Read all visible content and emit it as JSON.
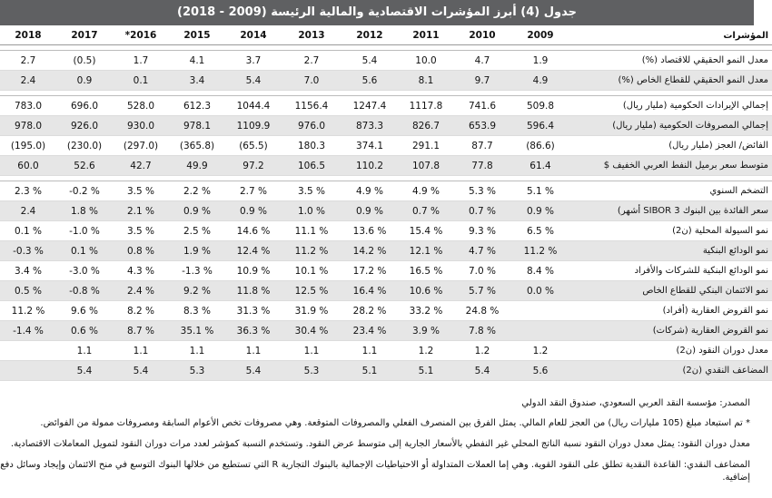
{
  "title": "جدول (4) أبرز المؤشرات الاقتصادية والمالية الرئيسة (2009 - 2018)",
  "header": {
    "indicators_label": "المؤشرات",
    "years": [
      "2009",
      "2010",
      "2011",
      "2012",
      "2013",
      "2014",
      "2015",
      "*2016",
      "2017",
      "2018"
    ]
  },
  "groups": [
    [
      {
        "label": "معدل النمو الحقيقي للاقتصاد  (%)",
        "values": [
          "1.9",
          "4.7",
          "10.0",
          "5.4",
          "2.7",
          "3.7",
          "4.1",
          "1.7",
          "(0.5)",
          "2.7"
        ]
      },
      {
        "label": "معدل النمو الحقيقي للقطاع الخاص (%)",
        "values": [
          "4.9",
          "9.7",
          "8.1",
          "5.6",
          "7.0",
          "5.4",
          "3.4",
          "0.1",
          "0.9",
          "2.4"
        ]
      }
    ],
    [
      {
        "label": "إجمالي الإيرادات الحكومية (مليار ريال)",
        "values": [
          "509.8",
          "741.6",
          "1117.8",
          "1247.4",
          "1156.4",
          "1044.4",
          "612.3",
          "528.0",
          "696.0",
          "783.0"
        ]
      },
      {
        "label": "إجمالي المصروفات الحكومية (مليار ريال)",
        "values": [
          "596.4",
          "653.9",
          "826.7",
          "873.3",
          "976.0",
          "1109.9",
          "978.1",
          "930.0",
          "926.0",
          "978.0"
        ]
      },
      {
        "label": "الفائض/ العجز (مليار ريال)",
        "values": [
          "(86.6)",
          "87.7",
          "291.1",
          "374.1",
          "180.3",
          "(65.5)",
          "(365.8)",
          "(297.0)",
          "(230.0)",
          "(195.0)"
        ]
      },
      {
        "label": "متوسط سعر برميل النفط العربي الخفيف $",
        "values": [
          "61.4",
          "77.8",
          "107.8",
          "110.2",
          "106.5",
          "97.2",
          "49.9",
          "42.7",
          "52.6",
          "60.0"
        ]
      }
    ],
    [
      {
        "label": "التضخم السنوي",
        "values": [
          "5.1 %",
          "5.3 %",
          "4.9 %",
          "4.9 %",
          "3.5 %",
          "2.7 %",
          "2.2 %",
          "3.5 %",
          "-0.2 %",
          "2.3 %"
        ]
      },
      {
        "label": "سعر الفائدة بين البنوك 3 SIBOR أشهر)",
        "values": [
          "0.9 %",
          "0.7 %",
          "0.7 %",
          "0.9 %",
          "1.0 %",
          "0.9 %",
          "0.9 %",
          "2.1 %",
          "1.8 %",
          "2.4"
        ]
      },
      {
        "label": "نمو السيولة المحلية (ن2)",
        "values": [
          "6.5 %",
          "9.3 %",
          "15.4 %",
          "13.6 %",
          "11.1 %",
          "14.6 %",
          "2.5 %",
          "3.5 %",
          "-1.0 %",
          "0.1 %"
        ]
      },
      {
        "label": "نمو الودائع البنكية",
        "values": [
          "11.2 %",
          "4.7 %",
          "12.1 %",
          "14.2 %",
          "11.2 %",
          "12.4 %",
          "1.9 %",
          "0.8 %",
          "0.1 %",
          "-0.3 %"
        ]
      },
      {
        "label": "نمو الودائع البنكية للشركات والأفراد",
        "values": [
          "8.4 %",
          "7.0 %",
          "16.5 %",
          "17.2 %",
          "10.1 %",
          "10.9 %",
          "-1.3 %",
          "4.3 %",
          "-3.0 %",
          "3.4 %"
        ]
      },
      {
        "label": "نمو الائتمان البنكي للقطاع الخاص",
        "values": [
          "0.0 %",
          "5.7 %",
          "10.6 %",
          "16.4 %",
          "12.5 %",
          "11.8 %",
          "9.2 %",
          "2.4 %",
          "-0.8 %",
          "0.5 %"
        ]
      },
      {
        "label": "نمو القروض العقارية (أفراد)",
        "values": [
          "",
          "24.8 %",
          "33.2 %",
          "28.2 %",
          "31.9 %",
          "31.3 %",
          "8.3 %",
          "8.2 %",
          "9.6 %",
          "11.2 %"
        ]
      },
      {
        "label": "نمو القروض العقارية (شركات)",
        "values": [
          "",
          "7.8 %",
          "3.9 %",
          "23.4 %",
          "30.4 %",
          "36.3 %",
          "35.1 %",
          "8.7 %",
          "0.6 %",
          "-1.4 %"
        ]
      },
      {
        "label": "معدل دوران النقود (ن2)",
        "values": [
          "1.2",
          "1.2",
          "1.2",
          "1.1",
          "1.1",
          "1.1",
          "1.1",
          "1.1",
          "1.1",
          ""
        ]
      },
      {
        "label": "المضاعف النقدي (ن2)",
        "values": [
          "5.6",
          "5.4",
          "5.1",
          "5.1",
          "5.3",
          "5.4",
          "5.3",
          "5.4",
          "5.4",
          ""
        ]
      }
    ]
  ],
  "notes": {
    "source": "المصدر: مؤسسة النقد العربي السعودي، صندوق النقد الدولي",
    "note1": "* تم استبعاد مبلغ (105 مليارات ريال) من العجز للعام المالي. يمثل الفرق بين المنصرف الفعلي والمصروفات المتوقعة. وهي مصروفات تخص الأعوام السابقة ومصروفات ممولة من الفوائض.",
    "note2": "معدل دوران النقود: يمثل معدل دوران النقود نسبة الناتج المحلي غير النفطي بالأسعار الجارية إلى متوسط عرض النقود. وتستخدم النسبة كمؤشر لعدد مرات دوران النقود لتمويل المعاملات الاقتصادية.",
    "note3": "المضاعف النقدي: القاعدة النقدية تطلق على النقود القوية. وهي إما العملات المتداولة أو الاحتياطيات الإجمالية بالبنوك التجارية R التي تستطيع من خلالها البنوك التوسع في منح الائتمان وإيجاد وسائل دفع إضافية."
  }
}
